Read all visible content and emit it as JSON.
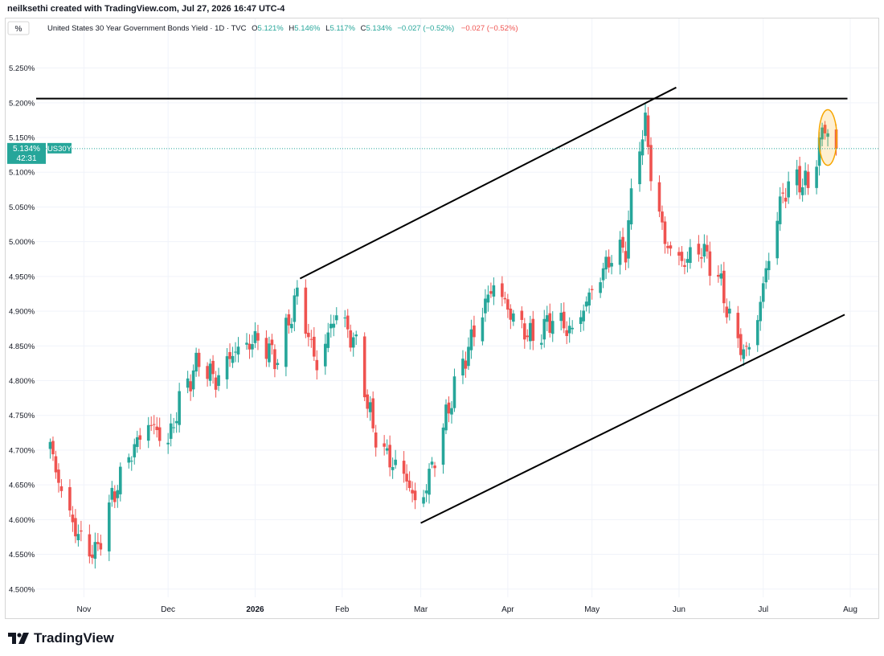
{
  "creator_text": "neilksethi created with TradingView.com, Jul 27, 2026 16:47 UTC-4",
  "legend": {
    "title": "United States 30 Year Government Bonds Yield · 1D · TVC",
    "o_label": "O",
    "o_value": "5.121%",
    "h_label": "H",
    "h_value": "5.146%",
    "l_label": "L",
    "l_value": "5.117%",
    "c_label": "C",
    "c_value": "5.134%",
    "change": "−0.027 (−0.52%)",
    "change2": "−0.027 (−0.52%)"
  },
  "unit_badge": "%",
  "price_tag": {
    "value": "5.134%",
    "countdown": "42:31",
    "symbol": "US30Y"
  },
  "footer_logo_text": "TradingView",
  "colors": {
    "up": "#26a69a",
    "down": "#ef5350",
    "grid": "#f0f3fa",
    "line": "#000000",
    "ellipse": "#f7a600",
    "text": "#131722"
  },
  "chart_data": {
    "type": "candlestick",
    "ylim": [
      4.465,
      5.275
    ],
    "yticks": [
      "5.250%",
      "5.200%",
      "5.150%",
      "5.100%",
      "5.050%",
      "5.000%",
      "4.950%",
      "4.900%",
      "4.850%",
      "4.800%",
      "4.750%",
      "4.700%",
      "4.650%",
      "4.600%",
      "4.550%",
      "4.500%"
    ],
    "xlim": [
      "2025-10-15",
      "2026-08-03"
    ],
    "xticks": [
      {
        "date": "2025-11-01",
        "label": "Nov",
        "bold": false
      },
      {
        "date": "2025-12-01",
        "label": "Dec",
        "bold": false
      },
      {
        "date": "2026-01-01",
        "label": "2026",
        "bold": true
      },
      {
        "date": "2026-02-01",
        "label": "Feb",
        "bold": false
      },
      {
        "date": "2026-03-01",
        "label": "Mar",
        "bold": false
      },
      {
        "date": "2026-04-01",
        "label": "Apr",
        "bold": false
      },
      {
        "date": "2026-05-01",
        "label": "May",
        "bold": false
      },
      {
        "date": "2026-06-01",
        "label": "Jun",
        "bold": false
      },
      {
        "date": "2026-07-01",
        "label": "Jul",
        "bold": false
      },
      {
        "date": "2026-08-01",
        "label": "Aug",
        "bold": false
      }
    ],
    "last_close": 5.134,
    "key_points": [
      [
        "2025-10-20",
        4.705
      ],
      [
        "2025-10-24",
        4.64
      ],
      [
        "2025-10-30",
        4.575
      ],
      [
        "2025-11-05",
        4.55
      ],
      [
        "2025-11-11",
        4.63
      ],
      [
        "2025-11-17",
        4.69
      ],
      [
        "2025-11-24",
        4.74
      ],
      [
        "2025-12-01",
        4.71
      ],
      [
        "2025-12-05",
        4.77
      ],
      [
        "2025-12-12",
        4.83
      ],
      [
        "2025-12-18",
        4.8
      ],
      [
        "2025-12-24",
        4.84
      ],
      [
        "2026-01-02",
        4.86
      ],
      [
        "2026-01-09",
        4.83
      ],
      [
        "2026-01-16",
        4.925
      ],
      [
        "2026-01-23",
        4.82
      ],
      [
        "2026-01-30",
        4.9
      ],
      [
        "2026-02-06",
        4.85
      ],
      [
        "2026-02-12",
        4.73
      ],
      [
        "2026-02-17",
        4.69
      ],
      [
        "2026-02-24",
        4.66
      ],
      [
        "2026-02-28",
        4.61
      ],
      [
        "2026-03-06",
        4.69
      ],
      [
        "2026-03-13",
        4.79
      ],
      [
        "2026-03-20",
        4.87
      ],
      [
        "2026-03-27",
        4.94
      ],
      [
        "2026-04-03",
        4.89
      ],
      [
        "2026-04-10",
        4.86
      ],
      [
        "2026-04-17",
        4.89
      ],
      [
        "2026-04-24",
        4.87
      ],
      [
        "2026-05-01",
        4.93
      ],
      [
        "2026-05-08",
        4.98
      ],
      [
        "2026-05-13",
        4.99
      ],
      [
        "2026-05-17",
        5.13
      ],
      [
        "2026-05-20",
        5.17
      ],
      [
        "2026-05-22",
        5.1
      ],
      [
        "2026-05-27",
        5.0
      ],
      [
        "2026-06-02",
        4.97
      ],
      [
        "2026-06-09",
        4.99
      ],
      [
        "2026-06-15",
        4.95
      ],
      [
        "2026-06-21",
        4.86
      ],
      [
        "2026-06-25",
        4.84
      ],
      [
        "2026-06-28",
        4.87
      ],
      [
        "2026-07-03",
        4.98
      ],
      [
        "2026-07-08",
        5.07
      ],
      [
        "2026-07-13",
        5.09
      ],
      [
        "2026-07-17",
        5.08
      ],
      [
        "2026-07-21",
        5.14
      ],
      [
        "2026-07-23",
        5.168
      ],
      [
        "2026-07-27",
        5.134
      ]
    ],
    "drawings": [
      {
        "type": "horizontal-line",
        "from": [
          "2025-10-15",
          5.206
        ],
        "to": [
          "2026-07-31",
          5.206
        ]
      },
      {
        "type": "trend-line",
        "from": [
          "2026-01-17",
          4.947
        ],
        "to": [
          "2026-05-31",
          5.222
        ]
      },
      {
        "type": "trend-line",
        "from": [
          "2026-03-01",
          4.595
        ],
        "to": [
          "2026-07-30",
          4.895
        ]
      },
      {
        "type": "ellipse",
        "center": [
          "2026-07-24",
          5.15
        ],
        "rx_days": 3.2,
        "ry": 0.04
      }
    ]
  }
}
